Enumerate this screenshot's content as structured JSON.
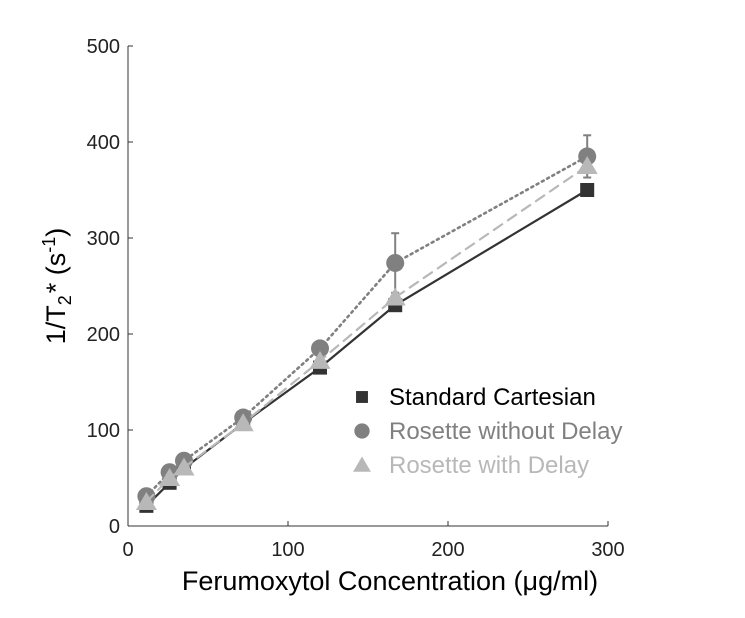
{
  "chart_data": {
    "type": "line",
    "xlabel": "Ferumoxytol Concentration (μg/ml)",
    "ylabel": "1/T2* (s-1)",
    "xlim": [
      0,
      300
    ],
    "ylim": [
      0,
      500
    ],
    "x_ticks": [
      "0",
      "100",
      "200",
      "300"
    ],
    "y_ticks": [
      "0",
      "100",
      "200",
      "300",
      "400",
      "500"
    ],
    "grid": false,
    "legend_position": "bottom-right",
    "series": [
      {
        "name": "Standard Cartesian",
        "marker": "square",
        "line_style": "solid",
        "color": "#333333",
        "x": [
          11.5,
          26,
          35,
          72,
          120,
          167,
          287
        ],
        "y": [
          21,
          45,
          60,
          107,
          165,
          230,
          350
        ]
      },
      {
        "name": "Rosette without Delay",
        "marker": "circle",
        "line_style": "dotted",
        "color": "#808080",
        "x": [
          11.5,
          26,
          35,
          72,
          120,
          167,
          287
        ],
        "y": [
          31,
          56,
          68,
          113,
          185,
          274,
          385
        ],
        "error": [
          3,
          3,
          3,
          3,
          5,
          31,
          22
        ]
      },
      {
        "name": "Rosette with Delay",
        "marker": "triangle",
        "line_style": "dashed",
        "color": "#b8b8b8",
        "x": [
          11.5,
          26,
          35,
          72,
          120,
          167,
          287
        ],
        "y": [
          25,
          50,
          61,
          107,
          172,
          238,
          375
        ]
      }
    ]
  }
}
